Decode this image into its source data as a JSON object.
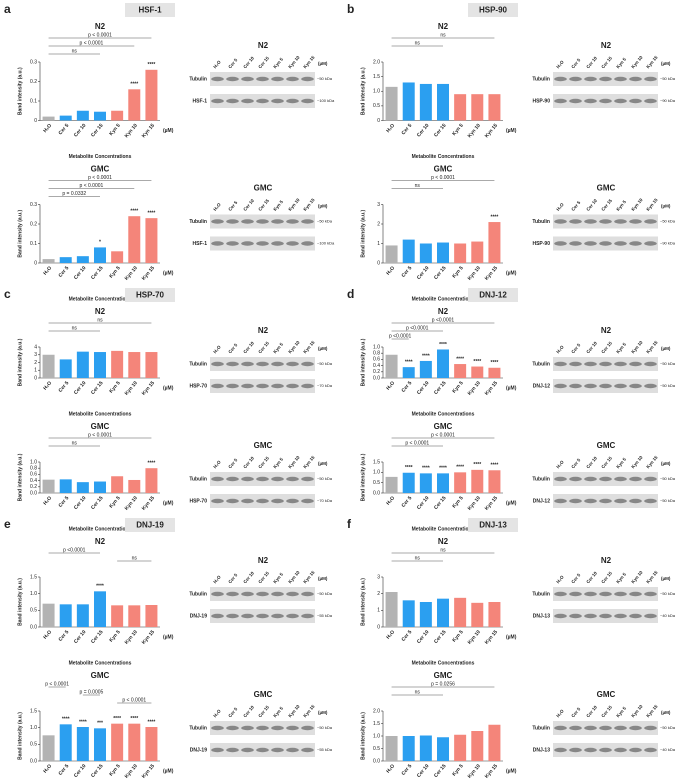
{
  "chart_data": [
    {
      "type": "bar",
      "title": "N2",
      "y_label": "Band intensity (a.u.)",
      "x_label": "Metabolite Concentrations",
      "unit": "(µM)",
      "categories": [
        "H₂O",
        "Cer 5",
        "Cer 10",
        "Cer 15",
        "Kyn 5",
        "Kyn 10",
        "Kyn 15"
      ],
      "values": [
        0.02,
        0.025,
        0.05,
        0.045,
        0.05,
        0.16,
        0.26
      ],
      "colors": [
        "#b3b3b3",
        "#2b9ff0",
        "#2b9ff0",
        "#2b9ff0",
        "#f4857a",
        "#f4857a",
        "#f4857a"
      ],
      "ylim": [
        0,
        0.3
      ],
      "yticks": [
        0,
        0.1,
        0.2,
        0.3
      ],
      "stars": [
        null,
        null,
        null,
        null,
        null,
        "****",
        "****"
      ],
      "annotations": [
        {
          "text": "p < 0.0001",
          "from": 0,
          "to": 6
        },
        {
          "text": "p < 0.0001",
          "from": 0,
          "to": 5
        },
        {
          "text": "ns",
          "from": 0,
          "to": 3
        }
      ]
    },
    {
      "type": "bar",
      "title": "GMC",
      "y_label": "Band intensity (a.u.)",
      "x_label": "Metabolite Concentrations",
      "unit": "(µM)",
      "categories": [
        "H₂O",
        "Cer 5",
        "Cer 10",
        "Cer 15",
        "Kyn 5",
        "Kyn 10",
        "Kyn 15"
      ],
      "values": [
        0.02,
        0.03,
        0.035,
        0.08,
        0.06,
        0.24,
        0.23
      ],
      "colors": [
        "#b3b3b3",
        "#2b9ff0",
        "#2b9ff0",
        "#2b9ff0",
        "#f4857a",
        "#f4857a",
        "#f4857a"
      ],
      "ylim": [
        0,
        0.3
      ],
      "yticks": [
        0,
        0.1,
        0.2,
        0.3
      ],
      "stars": [
        null,
        null,
        null,
        "*",
        null,
        "****",
        "****"
      ],
      "annotations": [
        {
          "text": "p < 0.0001",
          "from": 0,
          "to": 6
        },
        {
          "text": "p < 0.0001",
          "from": 0,
          "to": 5
        },
        {
          "text": "p = 0.0332",
          "from": 0,
          "to": 3
        }
      ]
    },
    {
      "type": "bar",
      "title": "N2",
      "y_label": "Band intensity (a.u.)",
      "x_label": "Metabolite Concentrations",
      "unit": "(µM)",
      "categories": [
        "H₂O",
        "Cer 5",
        "Cer 10",
        "Cer 15",
        "Kyn 5",
        "Kyn 10",
        "Kyn 15"
      ],
      "values": [
        1.15,
        1.3,
        1.25,
        1.25,
        0.9,
        0.9,
        0.9
      ],
      "colors": [
        "#b3b3b3",
        "#2b9ff0",
        "#2b9ff0",
        "#2b9ff0",
        "#f4857a",
        "#f4857a",
        "#f4857a"
      ],
      "ylim": [
        0,
        2
      ],
      "yticks": [
        0,
        0.5,
        {
          "value": 1,
          "label": "1.0"
        },
        1.5,
        {
          "value": 2,
          "label": "2.0"
        }
      ],
      "stars": [
        null,
        null,
        null,
        null,
        null,
        null,
        null
      ],
      "annotations": [
        {
          "text": "ns",
          "from": 0,
          "to": 6
        },
        {
          "text": "ns",
          "from": 0,
          "to": 3
        }
      ]
    },
    {
      "type": "bar",
      "title": "GMC",
      "y_label": "Band intensity (a.u.)",
      "x_label": "Metabolite Concentrations",
      "unit": "(µM)",
      "categories": [
        "H₂O",
        "Cer 5",
        "Cer 10",
        "Cer 15",
        "Kyn 5",
        "Kyn 10",
        "Kyn 15"
      ],
      "values": [
        0.9,
        1.2,
        1.0,
        1.05,
        1.0,
        1.1,
        2.1
      ],
      "colors": [
        "#b3b3b3",
        "#2b9ff0",
        "#2b9ff0",
        "#2b9ff0",
        "#f4857a",
        "#f4857a",
        "#f4857a"
      ],
      "ylim": [
        0,
        3
      ],
      "yticks": [
        0,
        1,
        2,
        3
      ],
      "stars": [
        null,
        null,
        null,
        null,
        null,
        null,
        "****"
      ],
      "annotations": [
        {
          "text": "p < 0.0001",
          "from": 0,
          "to": 6
        },
        {
          "text": "ns",
          "from": 0,
          "to": 3
        }
      ]
    },
    {
      "type": "bar",
      "title": "N2",
      "y_label": "Band intensity (a.u.)",
      "x_label": "Metabolite Concentrations",
      "unit": "(µM)",
      "categories": [
        "H₂O",
        "Cer 5",
        "Cer 10",
        "Cer 15",
        "Kyn 5",
        "Kyn 10",
        "Kyn 15"
      ],
      "values": [
        3.0,
        2.4,
        3.4,
        3.35,
        3.5,
        3.35,
        3.35
      ],
      "colors": [
        "#b3b3b3",
        "#2b9ff0",
        "#2b9ff0",
        "#2b9ff0",
        "#f4857a",
        "#f4857a",
        "#f4857a"
      ],
      "ylim": [
        0,
        4
      ],
      "yticks": [
        0,
        1,
        2,
        3,
        4
      ],
      "stars": [
        null,
        null,
        null,
        null,
        null,
        null,
        null
      ],
      "annotations": [
        {
          "text": "ns",
          "from": 0,
          "to": 6
        },
        {
          "text": "ns",
          "from": 0,
          "to": 3
        }
      ]
    },
    {
      "type": "bar",
      "title": "GMC",
      "y_label": "Band intensity (a.u.)",
      "x_label": "Metabolite Concentrations",
      "unit": "(µM)",
      "categories": [
        "H₂O",
        "Cer 5",
        "Cer 10",
        "Cer 15",
        "Kyn 5",
        "Kyn 10",
        "Kyn 15"
      ],
      "values": [
        0.43,
        0.44,
        0.35,
        0.37,
        0.54,
        0.42,
        0.8
      ],
      "colors": [
        "#b3b3b3",
        "#2b9ff0",
        "#2b9ff0",
        "#2b9ff0",
        "#f4857a",
        "#f4857a",
        "#f4857a"
      ],
      "ylim": [
        0,
        1
      ],
      "yticks": [
        {
          "value": 0,
          "label": "0.0"
        },
        0.2,
        0.4,
        0.6,
        0.8,
        {
          "value": 1,
          "label": "1.0"
        }
      ],
      "stars": [
        null,
        null,
        null,
        null,
        null,
        null,
        "****"
      ],
      "annotations": [
        {
          "text": "p < 0.0001",
          "from": 0,
          "to": 6
        },
        {
          "text": "ns",
          "from": 0,
          "to": 3
        }
      ]
    },
    {
      "type": "bar",
      "title": "N2",
      "y_label": "Band intensity (a.u.)",
      "x_label": "Metabolite Concentrations",
      "unit": "(µM)",
      "categories": [
        "H₂O",
        "Cer 5",
        "Cer 10",
        "Cer 15",
        "Kyn 5",
        "Kyn 10",
        "Kyn 15"
      ],
      "values": [
        0.75,
        0.35,
        0.55,
        0.92,
        0.45,
        0.37,
        0.33
      ],
      "colors": [
        "#b3b3b3",
        "#2b9ff0",
        "#2b9ff0",
        "#2b9ff0",
        "#f4857a",
        "#f4857a",
        "#f4857a"
      ],
      "ylim": [
        0,
        1
      ],
      "yticks": [
        {
          "value": 0,
          "label": "0.0"
        },
        0.2,
        0.4,
        0.6,
        0.8,
        {
          "value": 1,
          "label": "1.0"
        }
      ],
      "stars": [
        null,
        "****",
        "****",
        "****",
        "****",
        "****",
        "****"
      ],
      "annotations": [
        {
          "text": "p <0.0001",
          "from": 0,
          "to": 6
        },
        {
          "text": "p <0.0001",
          "from": 0,
          "to": 3
        },
        {
          "text": "p <0.0001",
          "from": 0,
          "to": 1
        }
      ]
    },
    {
      "type": "bar",
      "title": "GMC",
      "y_label": "Band intensity (a.u.)",
      "x_label": "Metabolite Concentrations",
      "unit": "(µM)",
      "categories": [
        "H₂O",
        "Cer 5",
        "Cer 10",
        "Cer 15",
        "Kyn 5",
        "Kyn 10",
        "Kyn 15"
      ],
      "values": [
        0.78,
        0.98,
        0.95,
        0.95,
        1.0,
        1.12,
        1.1
      ],
      "colors": [
        "#b3b3b3",
        "#2b9ff0",
        "#2b9ff0",
        "#2b9ff0",
        "#f4857a",
        "#f4857a",
        "#f4857a"
      ],
      "ylim": [
        0,
        1.5
      ],
      "yticks": [
        {
          "value": 0,
          "label": "0.0"
        },
        0.5,
        {
          "value": 1,
          "label": "1.0"
        },
        1.5
      ],
      "stars": [
        null,
        "****",
        "****",
        "****",
        "****",
        "****",
        "****"
      ],
      "annotations": [
        {
          "text": "p < 0.0001",
          "from": 0,
          "to": 6
        },
        {
          "text": "p < 0.0001",
          "from": 0,
          "to": 3
        }
      ]
    },
    {
      "type": "bar",
      "title": "N2",
      "y_label": "Band intensity (a.u.)",
      "x_label": "Metabolite Concentrations",
      "unit": "(µM)",
      "categories": [
        "H₂O",
        "Cer 5",
        "Cer 10",
        "Cer 15",
        "Kyn 5",
        "Kyn 10",
        "Kyn 15"
      ],
      "values": [
        0.7,
        0.68,
        0.68,
        1.07,
        0.65,
        0.65,
        0.66
      ],
      "colors": [
        "#b3b3b3",
        "#2b9ff0",
        "#2b9ff0",
        "#2b9ff0",
        "#f4857a",
        "#f4857a",
        "#f4857a"
      ],
      "ylim": [
        0,
        1.5
      ],
      "yticks": [
        {
          "value": 0,
          "label": "0.0"
        },
        0.5,
        {
          "value": 1,
          "label": "1.0"
        },
        1.5
      ],
      "stars": [
        null,
        null,
        null,
        "****",
        null,
        null,
        null
      ],
      "annotations": [
        {
          "text": "p <0.0001",
          "from": 0,
          "to": 3
        },
        {
          "text": "ns",
          "from": 4,
          "to": 6
        }
      ]
    },
    {
      "type": "bar",
      "title": "GMC",
      "y_label": "Band intensity (a.u.)",
      "x_label": "Metabolite Concentrations",
      "unit": "(µM)",
      "categories": [
        "H₂O",
        "Cer 5",
        "Cer 10",
        "Cer 15",
        "Kyn 5",
        "Kyn 10",
        "Kyn 15"
      ],
      "values": [
        0.77,
        1.1,
        1.02,
        0.98,
        1.12,
        1.12,
        1.02
      ],
      "colors": [
        "#b3b3b3",
        "#2b9ff0",
        "#2b9ff0",
        "#2b9ff0",
        "#f4857a",
        "#f4857a",
        "#f4857a"
      ],
      "ylim": [
        0,
        1.5
      ],
      "yticks": [
        {
          "value": 0,
          "label": "0.0"
        },
        0.5,
        {
          "value": 1,
          "label": "1.0"
        },
        1.5
      ],
      "stars": [
        null,
        "****",
        "****",
        "***",
        "****",
        "****",
        "****"
      ],
      "annotations": [
        {
          "text": "p < 0.0001",
          "from": 0,
          "to": 1
        },
        {
          "text": "p = 0.0005",
          "from": 2,
          "to": 3
        },
        {
          "text": "p < 0.0001",
          "from": 4,
          "to": 6
        }
      ]
    },
    {
      "type": "bar",
      "title": "N2",
      "y_label": "Band intensity (a.u.)",
      "x_label": "Metabolite Concentrations",
      "unit": "(µM)",
      "categories": [
        "H₂O",
        "Cer 5",
        "Cer 10",
        "Cer 15",
        "Kyn 5",
        "Kyn 10",
        "Kyn 15"
      ],
      "values": [
        2.1,
        1.6,
        1.5,
        1.7,
        1.75,
        1.45,
        1.5
      ],
      "colors": [
        "#b3b3b3",
        "#2b9ff0",
        "#2b9ff0",
        "#2b9ff0",
        "#f4857a",
        "#f4857a",
        "#f4857a"
      ],
      "ylim": [
        0,
        3
      ],
      "yticks": [
        0,
        1,
        2,
        3
      ],
      "stars": [
        null,
        null,
        null,
        null,
        null,
        null,
        null
      ],
      "annotations": [
        {
          "text": "ns",
          "from": 0,
          "to": 6
        },
        {
          "text": "ns",
          "from": 0,
          "to": 3
        }
      ]
    },
    {
      "type": "bar",
      "title": "GMC",
      "y_label": "Band intensity (a.u.)",
      "x_label": "Metabolite Concentrations",
      "unit": "(µM)",
      "categories": [
        "H₂O",
        "Cer 5",
        "Cer 10",
        "Cer 15",
        "Kyn 5",
        "Kyn 10",
        "Kyn 15"
      ],
      "values": [
        1.0,
        1.0,
        1.02,
        0.95,
        1.05,
        1.2,
        1.45
      ],
      "colors": [
        "#b3b3b3",
        "#2b9ff0",
        "#2b9ff0",
        "#2b9ff0",
        "#f4857a",
        "#f4857a",
        "#f4857a"
      ],
      "ylim": [
        0,
        2
      ],
      "yticks": [
        {
          "value": 0,
          "label": "0.0"
        },
        0.5,
        {
          "value": 1,
          "label": "1.0"
        },
        1.5,
        {
          "value": 2,
          "label": "2.0"
        }
      ],
      "stars": [
        null,
        null,
        null,
        null,
        null,
        null,
        null
      ],
      "annotations": [
        {
          "text": "p = 0.0256",
          "from": 0,
          "to": 6
        },
        {
          "text": "ns",
          "from": 0,
          "to": 3
        }
      ]
    }
  ],
  "panels": [
    {
      "letter": "a",
      "title": "HSF-1",
      "blots": [
        {
          "title": "N2",
          "rows": [
            {
              "label": "Tubulin",
              "marker": "~50 kDa"
            },
            {
              "label": "HSF-1",
              "marker": "~100 kDa"
            }
          ]
        },
        {
          "title": "GMC",
          "rows": [
            {
              "label": "Tubulin",
              "marker": "~50 kDa"
            },
            {
              "label": "HSF-1",
              "marker": "~100 kDa"
            }
          ]
        }
      ]
    },
    {
      "letter": "b",
      "title": "HSP-90",
      "blots": [
        {
          "title": "N2",
          "rows": [
            {
              "label": "Tubulin",
              "marker": "~50 kDa"
            },
            {
              "label": "HSP-90",
              "marker": "~90 kDa"
            }
          ]
        },
        {
          "title": "GMC",
          "rows": [
            {
              "label": "Tubulin",
              "marker": "~50 kDa"
            },
            {
              "label": "HSP-90",
              "marker": "~90 kDa"
            }
          ]
        }
      ]
    },
    {
      "letter": "c",
      "title": "HSP-70",
      "blots": [
        {
          "title": "N2",
          "rows": [
            {
              "label": "Tubulin",
              "marker": "~50 kDa"
            },
            {
              "label": "HSP-70",
              "marker": "~70 kDa"
            }
          ]
        },
        {
          "title": "GMC",
          "rows": [
            {
              "label": "Tubulin",
              "marker": "~50 kDa"
            },
            {
              "label": "HSP-70",
              "marker": "~70 kDa"
            }
          ]
        }
      ]
    },
    {
      "letter": "d",
      "title": "DNJ-12",
      "blots": [
        {
          "title": "N2",
          "rows": [
            {
              "label": "Tubulin",
              "marker": "~50 kDa"
            },
            {
              "label": "DNJ-12",
              "marker": "~50 kDa"
            }
          ]
        },
        {
          "title": "GMC",
          "rows": [
            {
              "label": "Tubulin",
              "marker": "~50 kDa"
            },
            {
              "label": "DNJ-12",
              "marker": "~50 kDa"
            }
          ]
        }
      ]
    },
    {
      "letter": "e",
      "title": "DNJ-19",
      "blots": [
        {
          "title": "N2",
          "rows": [
            {
              "label": "Tubulin",
              "marker": "~50 kDa"
            },
            {
              "label": "DNJ-19",
              "marker": "~55 kDa"
            }
          ]
        },
        {
          "title": "GMC",
          "rows": [
            {
              "label": "Tubulin",
              "marker": "~50 kDa"
            },
            {
              "label": "DNJ-19",
              "marker": "~55 kDa"
            }
          ]
        }
      ]
    },
    {
      "letter": "f",
      "title": "DNJ-13",
      "blots": [
        {
          "title": "N2",
          "rows": [
            {
              "label": "Tubulin",
              "marker": "~50 kDa"
            },
            {
              "label": "DNJ-13",
              "marker": "~40 kDa"
            }
          ]
        },
        {
          "title": "GMC",
          "rows": [
            {
              "label": "Tubulin",
              "marker": "~50 kDa"
            },
            {
              "label": "DNJ-13",
              "marker": "~40 kDa"
            }
          ]
        }
      ]
    }
  ]
}
